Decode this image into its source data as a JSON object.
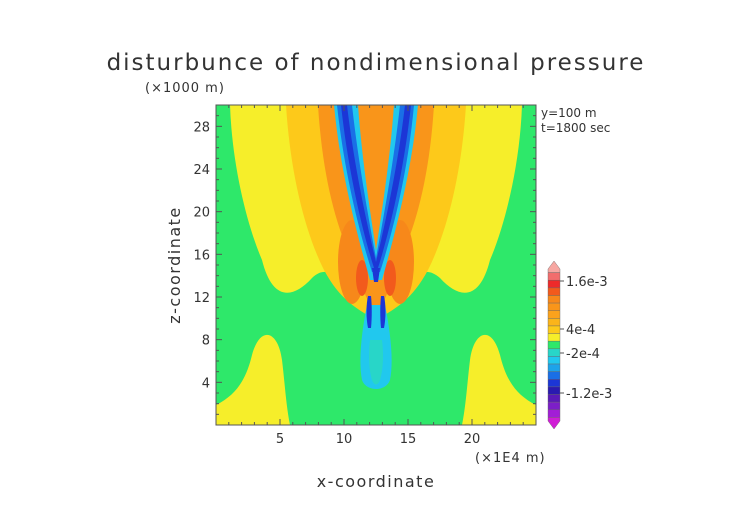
{
  "chart_data": {
    "type": "heatmap",
    "title": "disturbunce of nondimensional pressure",
    "xlabel": "x-coordinate",
    "ylabel": "z-coordinate",
    "x_unit": "(×1E4 m)",
    "y_unit": "(×1000 m)",
    "annotations": [
      "y=100 m",
      "t=1800 sec"
    ],
    "xlim": [
      0,
      25
    ],
    "ylim": [
      0,
      30
    ],
    "x_ticks": [
      5,
      10,
      15,
      20
    ],
    "y_ticks": [
      4,
      8,
      12,
      16,
      20,
      24,
      28
    ],
    "x_tick_labels": [
      "5",
      "10",
      "15",
      "20"
    ],
    "y_tick_labels": [
      "4",
      "8",
      "12",
      "16",
      "20",
      "24",
      "28"
    ],
    "colorbar": {
      "labels": [
        "1.6e-3",
        "4e-4",
        "-2e-4",
        "-1.2e-3"
      ],
      "label_values": [
        0.0016,
        0.0004,
        -0.0002,
        -0.0012
      ],
      "color_levels": [
        {
          "value": 0.002,
          "color": "#f7a7a2"
        },
        {
          "value": 0.0018,
          "color": "#f26d6d"
        },
        {
          "value": 0.0016,
          "color": "#ee2a2a"
        },
        {
          "value": 0.0014,
          "color": "#f25a1c"
        },
        {
          "value": 0.0012,
          "color": "#f7881a"
        },
        {
          "value": 0.001,
          "color": "#f9951a"
        },
        {
          "value": 0.0008,
          "color": "#fba21c"
        },
        {
          "value": 0.0006,
          "color": "#fbb41a"
        },
        {
          "value": 0.0004,
          "color": "#fdc91a"
        },
        {
          "value": 0.0002,
          "color": "#f6ee2a"
        },
        {
          "value": 0.0,
          "color": "#2ee86a"
        },
        {
          "value": -0.0002,
          "color": "#28d6c8"
        },
        {
          "value": -0.0004,
          "color": "#21c8ee"
        },
        {
          "value": -0.0006,
          "color": "#1da3ea"
        },
        {
          "value": -0.0008,
          "color": "#1a6fe6"
        },
        {
          "value": -0.001,
          "color": "#1c36d6"
        },
        {
          "value": -0.0012,
          "color": "#2a1ab0"
        },
        {
          "value": -0.0014,
          "color": "#5a1ab8"
        },
        {
          "value": -0.0016,
          "color": "#7c1ec8"
        },
        {
          "value": -0.0018,
          "color": "#a21ed6"
        },
        {
          "value": -0.002,
          "color": "#d01ed6"
        }
      ]
    }
  }
}
